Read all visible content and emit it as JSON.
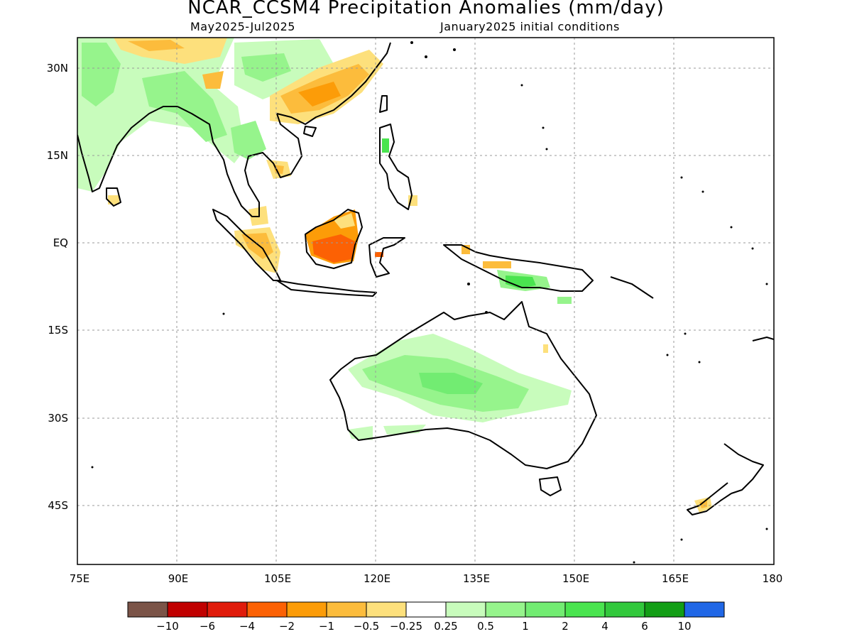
{
  "title": "NCAR_CCSM4 Precipitation Anomalies (mm/day)",
  "subtitle_left": "May2025-Jul2025",
  "subtitle_right": "January2025 initial conditions",
  "map": {
    "lon_labels": [
      "75E",
      "90E",
      "105E",
      "120E",
      "135E",
      "150E",
      "165E",
      "180"
    ],
    "lat_labels": [
      "30N",
      "15N",
      "EQ",
      "15S",
      "30S",
      "45S"
    ]
  },
  "colorbar": {
    "colors": [
      "#7b5448",
      "#c00000",
      "#e01b0b",
      "#fc6104",
      "#fc9c08",
      "#fcbc3c",
      "#fde07c",
      "#ffffff",
      "#c8fcbc",
      "#96f48c",
      "#72ec72",
      "#4ae44f",
      "#32c83c",
      "#139e16",
      "#2067e6"
    ],
    "labels": [
      "-10",
      "-6",
      "-4",
      "-2",
      "-1",
      "-0.5",
      "-0.25",
      "0.25",
      "0.5",
      "1",
      "2",
      "4",
      "6",
      "10"
    ]
  },
  "anomaly_regions": [
    {
      "name": "india-wet",
      "level": "0.5"
    },
    {
      "name": "south-china-dry",
      "level": "-1"
    },
    {
      "name": "borneo-dry",
      "level": "-2"
    },
    {
      "name": "sumatra-dry",
      "level": "-1"
    },
    {
      "name": "new-guinea-wet",
      "level": "1"
    },
    {
      "name": "australia-wet",
      "level": "0.5"
    },
    {
      "name": "new-zealand-dry",
      "level": "-0.5"
    }
  ]
}
